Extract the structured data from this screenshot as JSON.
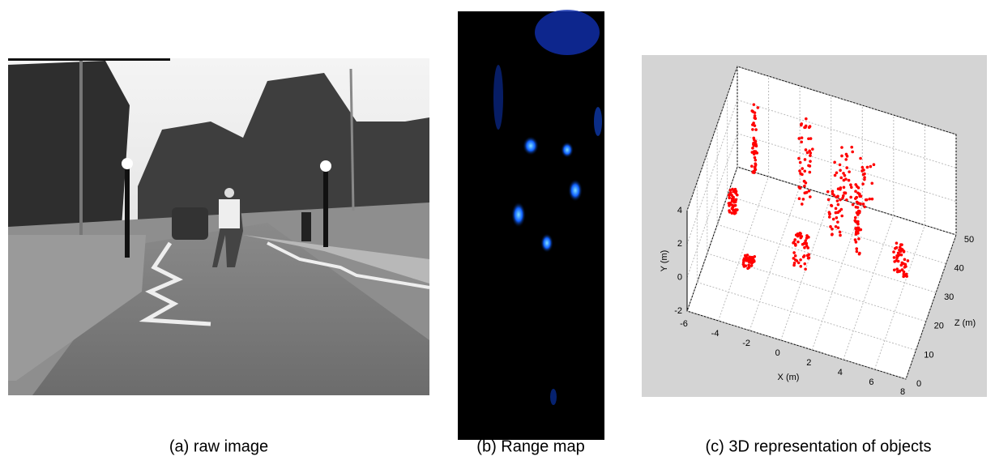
{
  "figure": {
    "panels": [
      {
        "caption": "(a) raw image"
      },
      {
        "caption": "(b) Range map"
      },
      {
        "caption": "(c) 3D representation of objects"
      }
    ],
    "plot": {
      "xlabel": "X (m)",
      "ylabel": "Y (m)",
      "zlabel": "Z (m)",
      "xticks": [
        -6,
        -4,
        -2,
        0,
        2,
        4,
        6,
        8
      ],
      "yticks": [
        -2,
        0,
        2,
        4
      ],
      "zticks": [
        0,
        10,
        20,
        30,
        40,
        50
      ]
    }
  }
}
